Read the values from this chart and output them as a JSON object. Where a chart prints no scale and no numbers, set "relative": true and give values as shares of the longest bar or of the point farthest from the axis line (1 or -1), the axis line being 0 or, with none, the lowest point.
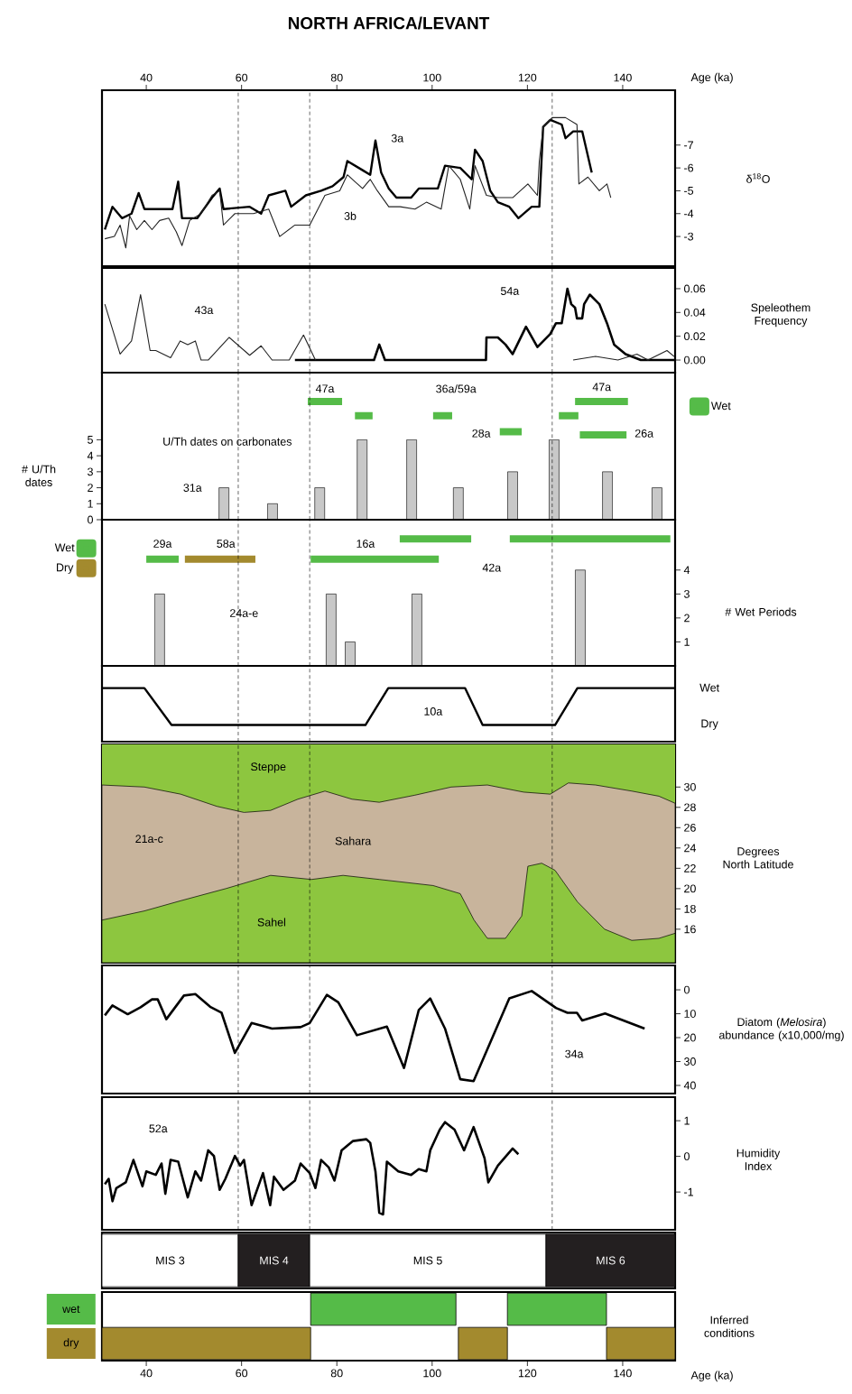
{
  "chart_data": [
    {
      "type": "line",
      "title": "NORTH AFRICA/LEVANT",
      "xlabel": "Age (ka)",
      "xlim": [
        30.7,
        151
      ],
      "xticks": [
        40,
        60,
        80,
        100,
        120,
        140
      ],
      "ylabel": "δ$^{18}$O",
      "ylim": [
        -1.7,
        -9.4
      ],
      "yticks": [
        -7,
        -6,
        -5,
        -4,
        -3
      ],
      "series": [
        {
          "color": "#000000",
          "x": [
            31.3,
            32.9,
            34.9,
            36.9,
            38.4,
            39.6,
            41.6,
            45.5,
            46.7,
            47.5,
            50.7,
            53.8,
            55.4,
            56.2,
            61.7,
            64.1,
            65.7,
            69.2,
            70.4,
            73.5,
            76.7,
            79.1,
            81.4,
            82.2,
            85.4,
            87.0,
            88.1,
            89.3,
            90.9,
            92.5,
            95.6,
            97.2,
            101.2,
            102.7,
            105.9,
            108.3,
            109.0,
            110.6,
            112.2,
            113.8,
            116.2,
            118.1,
            120.9,
            122.5,
            123.3,
            124.8,
            127.2,
            128.0,
            129.6,
            131.5,
            133.5
          ],
          "values": [
            -3.3,
            -4.3,
            -3.8,
            -4.0,
            -4.9,
            -4.2,
            -4.2,
            -4.2,
            -5.4,
            -3.8,
            -3.8,
            -4.7,
            -5.1,
            -4.2,
            -4.3,
            -4.0,
            -4.8,
            -5.0,
            -4.3,
            -4.8,
            -5.0,
            -5.2,
            -5.6,
            -6.3,
            -5.9,
            -5.7,
            -7.2,
            -5.8,
            -5.1,
            -4.7,
            -4.7,
            -5.1,
            -5.1,
            -6.1,
            -6.0,
            -5.5,
            -6.8,
            -6.3,
            -5.0,
            -4.5,
            -4.3,
            -3.8,
            -4.3,
            -4.3,
            -7.8,
            -8.1,
            -7.9,
            -7.3,
            -7.6,
            -7.6,
            -5.8
          ]
        },
        {
          "color": "#222222",
          "x": [
            31.3,
            33.3,
            34.5,
            35.7,
            36.5,
            38.0,
            39.6,
            41.2,
            42.8,
            44.7,
            46.3,
            47.5,
            49.1,
            51.5,
            53.8,
            55.4,
            56.2,
            58.6,
            62.5,
            65.7,
            68.0,
            71.2,
            74.3,
            77.5,
            80.6,
            82.2,
            83.8,
            85.4,
            87.0,
            88.5,
            90.9,
            93.3,
            96.4,
            98.8,
            101.9,
            103.5,
            105.9,
            107.9,
            109.0,
            111.4,
            113.8,
            116.9,
            120.1,
            122.1,
            122.5,
            123.3,
            125.2,
            128.0,
            130.4,
            130.8,
            132.7,
            135.1,
            136.7,
            137.5
          ],
          "values": [
            -2.9,
            -3.0,
            -3.5,
            -2.5,
            -3.9,
            -3.3,
            -3.7,
            -3.3,
            -3.7,
            -3.8,
            -3.2,
            -2.6,
            -3.7,
            -4.0,
            -4.8,
            -5.0,
            -3.5,
            -4.0,
            -4.0,
            -4.2,
            -3.0,
            -3.5,
            -3.5,
            -4.8,
            -5.0,
            -5.7,
            -5.4,
            -5.1,
            -5.5,
            -5.0,
            -4.3,
            -4.3,
            -4.2,
            -4.5,
            -4.2,
            -6.1,
            -5.5,
            -4.2,
            -6.1,
            -4.8,
            -4.7,
            -4.7,
            -5.3,
            -4.8,
            -6.3,
            -7.8,
            -8.2,
            -8.2,
            -7.9,
            -5.3,
            -5.6,
            -5.0,
            -5.3,
            -4.7
          ]
        }
      ],
      "annotations": [
        "3a",
        "3b"
      ],
      "ref_lines": [
        {
          "axis": "x",
          "value": 59.3,
          "line_style": "dashed"
        },
        {
          "axis": "x",
          "value": 74.3,
          "line_style": "dashed"
        },
        {
          "axis": "x",
          "value": 125.2,
          "line_style": "dashed"
        }
      ]
    },
    {
      "type": "line",
      "xlim": [
        30.7,
        151
      ],
      "ylabel": "Speleothem Frequency",
      "ylim": [
        -0.0106,
        0.0774
      ],
      "yticks": [
        {
          "value": 0,
          "label": "0.00"
        },
        {
          "value": 0.02,
          "label": "0.02"
        },
        {
          "value": 0.04,
          "label": "0.04"
        },
        {
          "value": 0.06,
          "label": "0.06"
        }
      ],
      "tick_labels": "y",
      "series": [
        {
          "color": "#000000",
          "x": [
            71.2,
            87.8,
            88.9,
            90.1,
            110.6,
            111.3,
            111.4,
            113.8,
            115.4,
            116.9,
            119.7,
            122.1,
            124.8,
            126.0,
            127.2,
            128.4,
            129.2,
            130.0,
            130.4,
            131.5,
            131.9,
            133.1,
            135.1,
            136.7,
            138.2,
            140.6,
            143.8,
            150.9
          ],
          "values": [
            0,
            0,
            0.013,
            0,
            0,
            0,
            0.019,
            0.019,
            0.013,
            0.005,
            0.028,
            0.011,
            0.022,
            0.031,
            0.031,
            0.06,
            0.047,
            0.044,
            0.035,
            0.035,
            0.047,
            0.055,
            0.047,
            0.031,
            0.013,
            0.005,
            0,
            0
          ]
        },
        {
          "color": "#222222",
          "x": [
            31.3,
            34.5,
            36.9,
            38.8,
            40.8,
            42.0,
            45.1,
            47.1,
            48.7,
            50.3,
            51.5,
            53.0,
            57.4,
            61.7,
            64.1,
            66.4,
            70.0,
            73.0,
            75.5,
            75.6,
            129.6,
            134.3,
            139.0,
            143.0,
            145.3,
            149.3,
            150.8
          ],
          "values": [
            0.047,
            0.005,
            0.016,
            0.055,
            0.008,
            0.008,
            0.002,
            0.016,
            0.013,
            0.016,
            0,
            0,
            0.019,
            0.004,
            0.012,
            0,
            0,
            0.021,
            0,
            null,
            0,
            0.003,
            0,
            0.005,
            0,
            0.008,
            0.003
          ]
        }
      ],
      "annotations": [
        "43a",
        "54a"
      ],
      "ref_lines": [
        {
          "axis": "x",
          "value": 59.3,
          "line_style": "dashed"
        },
        {
          "axis": "x",
          "value": 74.3,
          "line_style": "dashed"
        },
        {
          "axis": "x",
          "value": 125.2,
          "line_style": "dashed"
        }
      ]
    },
    {
      "type": "bar",
      "xlim": [
        30.7,
        151
      ],
      "ylabel": "# U/Th dates",
      "ylim": [
        0,
        9.2
      ],
      "yticks": [
        0,
        1,
        2,
        3,
        4,
        5
      ],
      "tick_labels": "y",
      "legend": "right",
      "series": [
        {
          "type": "bar",
          "color": "#c8c8c8",
          "x": [
            56.3,
            66.5,
            76.4,
            85.3,
            95.7,
            105.5,
            116.9,
            125.6,
            136.8,
            147.2
          ],
          "values": [
            2,
            1,
            2,
            5,
            5,
            2,
            3,
            5,
            3,
            2
          ]
        },
        {
          "type": "line",
          "name": "Wet",
          "color": "#55bb48",
          "x": [
            73.9,
            81.1,
            null,
            83.8,
            87.5,
            null,
            100.2,
            104.2,
            null,
            114.2,
            118.8,
            null,
            126.6,
            130.7,
            null,
            130.0,
            141.1,
            null,
            131.0,
            140.8
          ],
          "values": [
            7.4,
            7.4,
            null,
            6.5,
            6.5,
            null,
            6.5,
            6.5,
            null,
            5.5,
            5.5,
            null,
            6.5,
            6.5,
            null,
            7.4,
            7.4,
            null,
            5.3,
            5.3
          ]
        }
      ],
      "annotations": [
        "47a",
        "36a/59a",
        "47a",
        "28a",
        "26a",
        "31a",
        "U/Th dates on carbonates"
      ],
      "ref_lines": [
        {
          "axis": "x",
          "value": 59.3,
          "line_style": "dashed"
        },
        {
          "axis": "x",
          "value": 74.3,
          "line_style": "dashed"
        },
        {
          "axis": "x",
          "value": 125.2,
          "line_style": "dashed"
        }
      ]
    },
    {
      "type": "bar",
      "xlim": [
        30.7,
        151
      ],
      "ylabel": "# Wet Periods",
      "ylim": [
        0,
        6.1
      ],
      "yticks": [
        1,
        2,
        3,
        4
      ],
      "tick_labels": "y",
      "legend": "left",
      "series": [
        {
          "type": "bar",
          "color": "#c8c8c8",
          "x": [
            42.8,
            78.8,
            82.8,
            96.8,
            131.1
          ],
          "values": [
            3,
            3,
            1,
            3,
            4
          ]
        },
        {
          "type": "line",
          "name": "Wet",
          "color": "#55bb48",
          "x": [
            40.0,
            46.8,
            null,
            74.5,
            101.4,
            null,
            93.2,
            108.2,
            null,
            116.3,
            150.0
          ],
          "values": [
            4.45,
            4.45,
            null,
            4.45,
            4.45,
            null,
            5.3,
            5.3,
            null,
            5.3,
            5.3
          ]
        },
        {
          "type": "line",
          "name": "Dry",
          "color": "#a38a2e",
          "x": [
            48.1,
            62.9
          ],
          "values": [
            4.45,
            4.45
          ]
        }
      ],
      "annotations": [
        "29a",
        "58a",
        "16a",
        "42a",
        "24a-e"
      ],
      "ref_lines": [
        {
          "axis": "x",
          "value": 59.3,
          "line_style": "dashed"
        },
        {
          "axis": "x",
          "value": 74.3,
          "line_style": "dashed"
        },
        {
          "axis": "x",
          "value": 125.2,
          "line_style": "dashed"
        }
      ]
    },
    {
      "type": "line",
      "xlim": [
        30.7,
        151
      ],
      "relative": true,
      "tick_labels": false,
      "series": [
        {
          "color": "#000000",
          "x": [
            30.7,
            39.6,
            45.3,
            86.0,
            90.8,
            106.9,
            110.6,
            125.8,
            130.5,
            151
          ],
          "values": [
            1,
            1,
            0,
            0,
            1,
            1,
            0,
            0,
            1,
            1
          ]
        }
      ],
      "annotations": [
        "10a",
        "Wet",
        "Dry"
      ],
      "ref_lines": [
        {
          "axis": "x",
          "value": 59.3,
          "line_style": "dashed"
        },
        {
          "axis": "x",
          "value": 74.3,
          "line_style": "dashed"
        },
        {
          "axis": "x",
          "value": 125.2,
          "line_style": "dashed"
        }
      ]
    },
    {
      "type": "area",
      "xlim": [
        30.7,
        151
      ],
      "ylabel": "Degrees North Latitude",
      "ylim": [
        12.7,
        34.2
      ],
      "yticks": [
        16,
        18,
        20,
        22,
        24,
        26,
        28,
        30
      ],
      "tick_labels": "y",
      "series": [
        {
          "color": "#c8b49c",
          "x": [
            30.7,
            39.6,
            47.2,
            54.8,
            60.5,
            66.1,
            71.8,
            77.5,
            83.2,
            88.9,
            96.4,
            104,
            111.6,
            119.2,
            124.8,
            128.6,
            134.3,
            141.9,
            147.6,
            151
          ],
          "values": [
            30.2,
            30,
            29.3,
            28.1,
            27.5,
            27.7,
            28.8,
            29.6,
            28.8,
            28.5,
            29.2,
            30,
            30.2,
            29.5,
            29.3,
            30.4,
            30.2,
            29.6,
            29.1,
            28.4
          ]
        },
        {
          "color": "#8dc63f",
          "x": [
            30.7,
            39.6,
            47.2,
            56.7,
            66.1,
            74.7,
            81.3,
            88.9,
            100.2,
            105.9,
            108.8,
            111.6,
            115.4,
            118.8,
            120.1,
            123,
            125.8,
            130.5,
            136.2,
            141.9,
            147.6,
            151
          ],
          "values": [
            16.9,
            17.8,
            18.8,
            20,
            21.3,
            20.9,
            21.3,
            20.9,
            20.3,
            19.5,
            16.9,
            15.1,
            15.1,
            17.3,
            22.2,
            22.5,
            21.8,
            18.7,
            16,
            14.9,
            15.1,
            15.6
          ]
        }
      ],
      "annotations": [
        "Steppe",
        "Sahara",
        "Sahel",
        "21a-c"
      ],
      "bands": [
        {
          "axis": "y",
          "from": 27.5,
          "to": 34.2,
          "color": "#8dc63f"
        }
      ],
      "ref_lines": [
        {
          "axis": "x",
          "value": 59.3,
          "line_style": "dashed"
        },
        {
          "axis": "x",
          "value": 74.3,
          "line_style": "dashed"
        },
        {
          "axis": "x",
          "value": 125.2,
          "line_style": "dashed"
        }
      ]
    },
    {
      "type": "line",
      "xlim": [
        30.7,
        151
      ],
      "ylabel": "Diatom (*Melosira*) abundance (x10,000/mg)",
      "ylim": [
        43.4,
        -10.2
      ],
      "yticks": [
        0,
        10,
        20,
        30,
        40
      ],
      "tick_labels": "y",
      "series": [
        {
          "color": "#000000",
          "x": [
            31.3,
            32.9,
            36.1,
            38.8,
            41.2,
            42.4,
            44.2,
            47.9,
            50.3,
            53.4,
            55.8,
            58.6,
            62.1,
            66.4,
            69.6,
            72.4,
            74.3,
            77.9,
            80.3,
            84.2,
            90.5,
            94.1,
            97.2,
            99.6,
            102.7,
            105.9,
            108.7,
            116.2,
            120.9,
            126.0,
            128.4,
            130.4,
            131.5,
            136.3,
            144.6
          ],
          "values": [
            10.7,
            6.5,
            10.2,
            7.3,
            4.0,
            4.0,
            12.3,
            2.4,
            1.8,
            7.1,
            9.6,
            26.4,
            13.9,
            16.2,
            15.9,
            15.6,
            13.9,
            2.1,
            5.2,
            19.0,
            15.4,
            32.7,
            8.4,
            3.6,
            16.2,
            37.4,
            38.2,
            3.6,
            0.5,
            7.6,
            9.6,
            9.6,
            12.8,
            9.9,
            16.2
          ]
        }
      ],
      "annotations": [
        "34a"
      ],
      "ref_lines": [
        {
          "axis": "x",
          "value": 59.3,
          "line_style": "dashed"
        },
        {
          "axis": "x",
          "value": 74.3,
          "line_style": "dashed"
        },
        {
          "axis": "x",
          "value": 125.2,
          "line_style": "dashed"
        }
      ]
    },
    {
      "type": "line",
      "xlim": [
        30.7,
        151
      ],
      "ylabel": "Humidity Index",
      "ylim": [
        -2.06,
        1.66
      ],
      "yticks": [
        -1,
        0,
        1
      ],
      "tick_labels": "y",
      "series": [
        {
          "color": "#000000",
          "x": [
            31.3,
            32.1,
            32.9,
            33.7,
            35.7,
            37.3,
            39.2,
            40.0,
            42.0,
            43.2,
            44.0,
            45.1,
            46.7,
            48.7,
            50.3,
            51.5,
            53.0,
            54.2,
            55.4,
            56.6,
            58.6,
            59.7,
            60.5,
            62.1,
            64.5,
            66.0,
            66.8,
            68.8,
            71.2,
            72.4,
            74.3,
            75.5,
            76.7,
            78.3,
            79.5,
            81.0,
            83.4,
            86.2,
            87.0,
            88.1,
            88.9,
            89.7,
            90.5,
            92.9,
            95.6,
            97.2,
            98.8,
            99.6,
            101.6,
            102.7,
            104.7,
            106.7,
            108.7,
            111.0,
            111.8,
            113.8,
            116.9,
            118.1
          ],
          "values": [
            -0.78,
            -0.63,
            -1.26,
            -0.89,
            -0.73,
            -0.1,
            -0.84,
            -0.42,
            -0.52,
            -0.2,
            -1.05,
            -0.1,
            -0.15,
            -1.15,
            -0.42,
            -0.68,
            0.17,
            0.01,
            -0.94,
            -0.63,
            0.01,
            -0.26,
            -0.1,
            -1.37,
            -0.47,
            -1.37,
            -0.57,
            -0.94,
            -0.68,
            -0.2,
            -0.47,
            -0.89,
            -0.1,
            -0.31,
            -0.68,
            0.17,
            0.43,
            0.48,
            0.38,
            -0.42,
            -1.58,
            -1.63,
            -0.15,
            -0.42,
            -0.52,
            -0.36,
            -0.42,
            0.17,
            0.75,
            0.96,
            0.75,
            0.17,
            0.82,
            -0.05,
            -0.73,
            -0.26,
            0.22,
            0.06
          ]
        }
      ],
      "annotations": [
        "52a"
      ],
      "ref_lines": [
        {
          "axis": "x",
          "value": 59.3,
          "line_style": "dashed"
        },
        {
          "axis": "x",
          "value": 74.3,
          "line_style": "dashed"
        },
        {
          "axis": "x",
          "value": 125.2,
          "line_style": "dashed"
        }
      ]
    },
    {
      "type": "bar",
      "orientation": "horizontal",
      "xlim": [
        30.7,
        151
      ],
      "categories": [
        null
      ],
      "tick_labels": false,
      "series": [
        {
          "name": "MIS 3",
          "color": "#ffffff",
          "values": [
            28.6
          ],
          "base": [
            30.7
          ]
        },
        {
          "name": "MIS 4",
          "color": "#231f20",
          "values": [
            15.0
          ],
          "base": [
            59.3
          ]
        },
        {
          "name": "MIS 5",
          "color": "#ffffff",
          "values": [
            49.6
          ],
          "base": [
            74.3
          ]
        },
        {
          "name": "MIS 6",
          "color": "#231f20",
          "values": [
            27.1
          ],
          "base": [
            123.9
          ]
        }
      ]
    },
    {
      "type": "bar",
      "orientation": "horizontal",
      "xlim": [
        30.7,
        151
      ],
      "xticks": [
        40,
        60,
        80,
        100,
        120,
        140
      ],
      "xlabel": "Age (ka)",
      "ylabel": "Inferred conditions",
      "categories": [
        "wet",
        "dry"
      ],
      "series": [
        {
          "color": "#55bb48",
          "values": [
            30.5,
            null
          ],
          "base": [
            74.5,
            null
          ]
        },
        {
          "color": "#55bb48",
          "values": [
            20.8,
            null
          ],
          "base": [
            115.8,
            null
          ]
        },
        {
          "color": "#a38a2e",
          "values": [
            null,
            43.8
          ],
          "base": [
            null,
            30.7
          ]
        },
        {
          "color": "#a38a2e",
          "values": [
            null,
            10.3
          ],
          "base": [
            null,
            105.5
          ]
        },
        {
          "color": "#a38a2e",
          "values": [
            null,
            14.4
          ],
          "base": [
            null,
            136.6
          ]
        }
      ]
    }
  ]
}
